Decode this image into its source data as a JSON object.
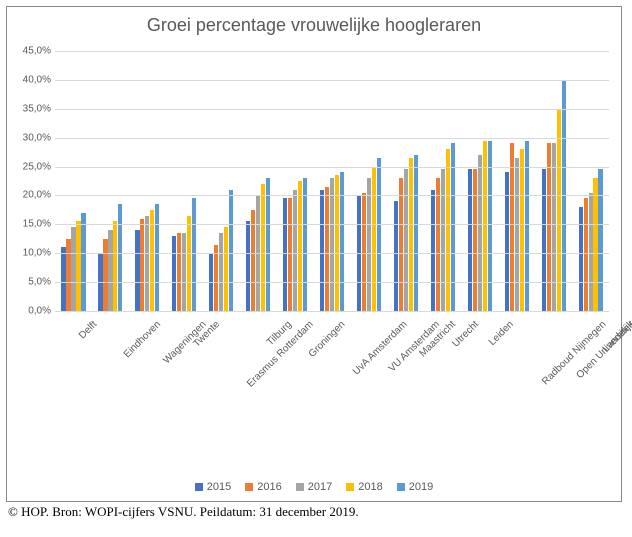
{
  "chart": {
    "type": "bar",
    "title": "Groei percentage vrouwelijke hoogleraren",
    "title_fontsize": 18,
    "title_color": "#595959",
    "background_color": "#ffffff",
    "grid_color": "#d9d9d9",
    "label_color": "#595959",
    "label_fontsize": 10,
    "ylim": [
      0,
      45
    ],
    "ytick_step": 5,
    "ytick_labels": [
      "0,0%",
      "5,0%",
      "10,0%",
      "15,0%",
      "20,0%",
      "25,0%",
      "30,0%",
      "35,0%",
      "40,0%",
      "45,0%"
    ],
    "series": [
      {
        "name": "2015",
        "color": "#4472c4"
      },
      {
        "name": "2016",
        "color": "#ed7d31"
      },
      {
        "name": "2017",
        "color": "#a5a5a5"
      },
      {
        "name": "2018",
        "color": "#ffc000"
      },
      {
        "name": "2019",
        "color": "#5b9bd5"
      }
    ],
    "categories": [
      "Delft",
      "Eindhoven",
      "Wageningen",
      "Twente",
      "Erasmus Rotterdam",
      "Tilburg",
      "Groningen",
      "UvA Amsterdam",
      "VU Amsterdam",
      "Maastricht",
      "Utrecht",
      "Leiden",
      "Radboud Nijmegen",
      "Open Universiteit",
      "Landelijk"
    ],
    "data": {
      "Delft": [
        11.0,
        12.5,
        14.5,
        15.5,
        17.0
      ],
      "Eindhoven": [
        10.0,
        12.5,
        14.0,
        15.5,
        18.5
      ],
      "Wageningen": [
        14.0,
        16.0,
        16.5,
        17.5,
        18.5
      ],
      "Twente": [
        13.0,
        13.5,
        13.5,
        16.5,
        19.5
      ],
      "Erasmus Rotterdam": [
        10.0,
        11.5,
        13.5,
        14.5,
        21.0
      ],
      "Tilburg": [
        15.5,
        17.5,
        20.0,
        22.0,
        23.0
      ],
      "Groningen": [
        19.5,
        19.5,
        21.0,
        22.5,
        23.0
      ],
      "UvA Amsterdam": [
        21.0,
        21.5,
        23.0,
        23.5,
        24.0
      ],
      "VU Amsterdam": [
        20.0,
        20.5,
        23.0,
        25.0,
        26.5
      ],
      "Maastricht": [
        19.0,
        23.0,
        24.5,
        26.5,
        27.0
      ],
      "Utrecht": [
        21.0,
        23.0,
        24.5,
        28.0,
        29.0
      ],
      "Leiden": [
        24.5,
        24.5,
        27.0,
        29.5,
        29.5
      ],
      "Radboud Nijmegen": [
        24.0,
        29.0,
        26.5,
        28.0,
        29.5
      ],
      "Open Universiteit": [
        24.5,
        29.0,
        29.0,
        35.0,
        40.0
      ],
      "Landelijk": [
        18.0,
        19.5,
        20.5,
        23.0,
        24.5
      ]
    }
  },
  "caption": "© HOP. Bron: WOPI-cijfers VSNU. Peildatum: 31 december 2019."
}
